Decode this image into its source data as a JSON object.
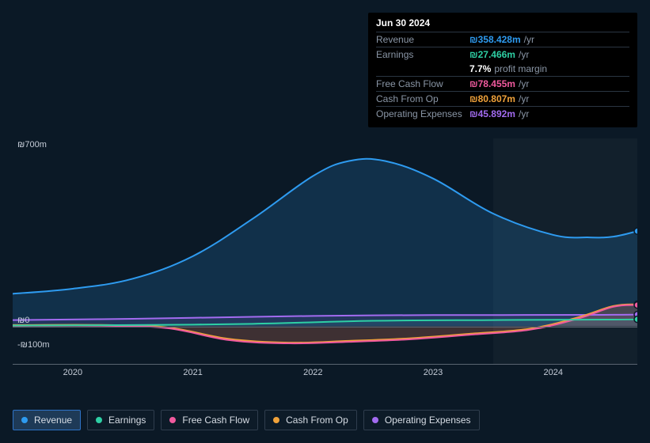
{
  "tooltip": {
    "date": "Jun 30 2024",
    "rows": [
      {
        "label": "Revenue",
        "value": "₪358.428m",
        "color": "#2e9bf0",
        "suffix": "/yr"
      },
      {
        "label": "Earnings",
        "value": "₪27.466m",
        "color": "#2ecfa4",
        "suffix": "/yr"
      },
      {
        "label": "",
        "value": "7.7%",
        "color": "#ffffff",
        "suffix": "profit margin",
        "noborder": true
      },
      {
        "label": "Free Cash Flow",
        "value": "₪78.455m",
        "color": "#f05a9e",
        "suffix": "/yr"
      },
      {
        "label": "Cash From Op",
        "value": "₪80.807m",
        "color": "#f0a23a",
        "suffix": "/yr"
      },
      {
        "label": "Operating Expenses",
        "value": "₪45.892m",
        "color": "#a26bf0",
        "suffix": "/yr"
      }
    ]
  },
  "chart": {
    "type": "area",
    "background_color": "#0b1926",
    "grid_color": "#5a6470",
    "x": {
      "min": 2019.5,
      "max": 2024.7,
      "ticks": [
        2020,
        2021,
        2022,
        2023,
        2024
      ],
      "forecast_start": 2023.5
    },
    "y": {
      "min": -150,
      "max": 750,
      "ticks": [
        {
          "v": 700,
          "label": "₪700m"
        },
        {
          "v": 0,
          "label": "₪0"
        },
        {
          "v": -100,
          "label": "-₪100m"
        }
      ],
      "unit_suffix": "m",
      "currency": "₪"
    },
    "series": [
      {
        "id": "revenue",
        "label": "Revenue",
        "color": "#2e9bf0",
        "fill": "rgba(46,155,240,0.18)",
        "points": [
          {
            "x": 2019.5,
            "y": 130
          },
          {
            "x": 2020.0,
            "y": 150
          },
          {
            "x": 2020.5,
            "y": 190
          },
          {
            "x": 2021.0,
            "y": 280
          },
          {
            "x": 2021.5,
            "y": 430
          },
          {
            "x": 2022.0,
            "y": 600
          },
          {
            "x": 2022.3,
            "y": 660
          },
          {
            "x": 2022.6,
            "y": 660
          },
          {
            "x": 2023.0,
            "y": 590
          },
          {
            "x": 2023.5,
            "y": 450
          },
          {
            "x": 2024.0,
            "y": 365
          },
          {
            "x": 2024.3,
            "y": 355
          },
          {
            "x": 2024.5,
            "y": 358
          },
          {
            "x": 2024.7,
            "y": 380
          }
        ]
      },
      {
        "id": "operating_expenses",
        "label": "Operating Expenses",
        "color": "#a26bf0",
        "fill": "rgba(162,107,240,0.12)",
        "points": [
          {
            "x": 2019.5,
            "y": 25
          },
          {
            "x": 2020.5,
            "y": 30
          },
          {
            "x": 2021.5,
            "y": 38
          },
          {
            "x": 2022.5,
            "y": 44
          },
          {
            "x": 2023.5,
            "y": 45
          },
          {
            "x": 2024.5,
            "y": 46
          },
          {
            "x": 2024.7,
            "y": 47
          }
        ]
      },
      {
        "id": "cash_from_op",
        "label": "Cash From Op",
        "color": "#f0a23a",
        "fill": "rgba(240,162,58,0.14)",
        "points": [
          {
            "x": 2019.5,
            "y": 5
          },
          {
            "x": 2020.3,
            "y": 5
          },
          {
            "x": 2020.8,
            "y": -5
          },
          {
            "x": 2021.3,
            "y": -50
          },
          {
            "x": 2021.8,
            "y": -65
          },
          {
            "x": 2022.3,
            "y": -58
          },
          {
            "x": 2022.8,
            "y": -48
          },
          {
            "x": 2023.3,
            "y": -30
          },
          {
            "x": 2023.8,
            "y": -10
          },
          {
            "x": 2024.2,
            "y": 35
          },
          {
            "x": 2024.5,
            "y": 81
          },
          {
            "x": 2024.7,
            "y": 88
          }
        ]
      },
      {
        "id": "free_cash_flow",
        "label": "Free Cash Flow",
        "color": "#f05a9e",
        "fill": "rgba(240,90,158,0.10)",
        "points": [
          {
            "x": 2019.5,
            "y": 2
          },
          {
            "x": 2020.3,
            "y": 2
          },
          {
            "x": 2020.8,
            "y": -8
          },
          {
            "x": 2021.3,
            "y": -55
          },
          {
            "x": 2021.8,
            "y": -68
          },
          {
            "x": 2022.3,
            "y": -62
          },
          {
            "x": 2022.8,
            "y": -52
          },
          {
            "x": 2023.3,
            "y": -34
          },
          {
            "x": 2023.8,
            "y": -14
          },
          {
            "x": 2024.2,
            "y": 30
          },
          {
            "x": 2024.5,
            "y": 78
          },
          {
            "x": 2024.7,
            "y": 85
          }
        ]
      },
      {
        "id": "earnings",
        "label": "Earnings",
        "color": "#2ecfa4",
        "fill": "rgba(46,207,164,0.10)",
        "points": [
          {
            "x": 2019.5,
            "y": 3
          },
          {
            "x": 2020.5,
            "y": 5
          },
          {
            "x": 2021.5,
            "y": 10
          },
          {
            "x": 2022.5,
            "y": 22
          },
          {
            "x": 2023.5,
            "y": 25
          },
          {
            "x": 2024.5,
            "y": 27
          },
          {
            "x": 2024.7,
            "y": 28
          }
        ]
      }
    ],
    "end_markers": [
      {
        "color": "#2e9bf0",
        "x": 2024.7,
        "y": 380
      },
      {
        "color": "#f0a23a",
        "x": 2024.7,
        "y": 88
      },
      {
        "color": "#f05a9e",
        "x": 2024.7,
        "y": 85
      },
      {
        "color": "#a26bf0",
        "x": 2024.7,
        "y": 47
      },
      {
        "color": "#2ecfa4",
        "x": 2024.7,
        "y": 28
      }
    ]
  },
  "legend": {
    "active": "revenue",
    "items": [
      {
        "id": "revenue",
        "label": "Revenue",
        "color": "#2e9bf0"
      },
      {
        "id": "earnings",
        "label": "Earnings",
        "color": "#2ecfa4"
      },
      {
        "id": "free_cash_flow",
        "label": "Free Cash Flow",
        "color": "#f05a9e"
      },
      {
        "id": "cash_from_op",
        "label": "Cash From Op",
        "color": "#f0a23a"
      },
      {
        "id": "operating_expenses",
        "label": "Operating Expenses",
        "color": "#a26bf0"
      }
    ]
  }
}
